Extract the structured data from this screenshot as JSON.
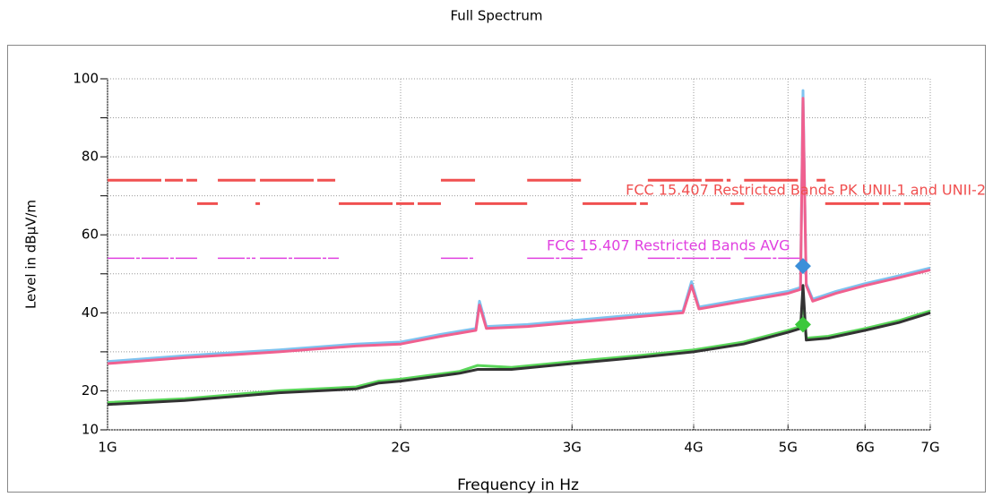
{
  "chart_data": {
    "type": "line",
    "title": "Full Spectrum",
    "xlabel": "Frequency in Hz",
    "ylabel": "Level in dBµV/m",
    "xscale": "log",
    "grid": true,
    "xlim": [
      1000000000,
      7000000000
    ],
    "ylim": [
      10,
      100
    ],
    "xticks": [
      {
        "value": 1000000000,
        "label": "1G"
      },
      {
        "value": 2000000000,
        "label": "2G"
      },
      {
        "value": 3000000000,
        "label": "3G"
      },
      {
        "value": 4000000000,
        "label": "4G"
      },
      {
        "value": 5000000000,
        "label": "5G"
      },
      {
        "value": 6000000000,
        "label": "6G"
      },
      {
        "value": 7000000000,
        "label": "7G"
      }
    ],
    "yticks": [
      10,
      20,
      40,
      60,
      80,
      100
    ],
    "yminor_ticks": [
      30,
      50,
      70,
      90
    ],
    "series": [
      {
        "color": "#7ec3f0",
        "x": [
          1000000000,
          1200000000,
          1500000000,
          1800000000,
          2000000000,
          2200000000,
          2390000000,
          2410000000,
          2450000000,
          2700000000,
          3000000000,
          3500000000,
          3900000000,
          3980000000,
          4050000000,
          4500000000,
          5000000000,
          5150000000,
          5180000000,
          5220000000,
          5300000000,
          5600000000,
          6000000000,
          6500000000,
          7000000000
        ],
        "values": [
          27.5,
          29,
          30.5,
          32,
          32.5,
          34.5,
          36,
          43,
          36.5,
          37,
          38,
          39.5,
          40.5,
          48,
          41.5,
          43.5,
          45.5,
          46.5,
          97,
          47.5,
          43.5,
          45.5,
          47.5,
          49.5,
          51.5
        ]
      },
      {
        "color": "#f0608f",
        "x": [
          1000000000,
          1200000000,
          1500000000,
          1800000000,
          2000000000,
          2200000000,
          2390000000,
          2410000000,
          2450000000,
          2700000000,
          3000000000,
          3500000000,
          3900000000,
          3980000000,
          4050000000,
          4500000000,
          5000000000,
          5150000000,
          5180000000,
          5220000000,
          5300000000,
          5600000000,
          6000000000,
          6500000000,
          7000000000
        ],
        "values": [
          27,
          28.5,
          30,
          31.5,
          32,
          34,
          35.5,
          42,
          36,
          36.5,
          37.5,
          39,
          40,
          47,
          41,
          43,
          45,
          46,
          95,
          47,
          43,
          45,
          47,
          49,
          51
        ]
      },
      {
        "color": "#5ad65a",
        "x": [
          1000000000,
          1200000000,
          1500000000,
          1800000000,
          1900000000,
          2000000000,
          2300000000,
          2400000000,
          2600000000,
          3000000000,
          3500000000,
          4000000000,
          4500000000,
          5000000000,
          5150000000,
          5180000000,
          5220000000,
          5500000000,
          6000000000,
          6500000000,
          7000000000
        ],
        "values": [
          17,
          18,
          20,
          21,
          22.5,
          23,
          25,
          26.5,
          26,
          27.5,
          29,
          30.5,
          32.5,
          35.5,
          36.5,
          44,
          33.5,
          34,
          36,
          38,
          40.5
        ]
      },
      {
        "color": "#333333",
        "x": [
          1000000000,
          1200000000,
          1500000000,
          1800000000,
          1900000000,
          2000000000,
          2300000000,
          2400000000,
          2600000000,
          3000000000,
          3500000000,
          4000000000,
          4500000000,
          5000000000,
          5150000000,
          5180000000,
          5220000000,
          5500000000,
          6000000000,
          6500000000,
          7000000000
        ],
        "values": [
          16.5,
          17.5,
          19.5,
          20.5,
          22,
          22.5,
          24.5,
          25.5,
          25.5,
          27,
          28.5,
          30,
          32,
          35,
          36,
          47,
          33,
          33.5,
          35.5,
          37.5,
          40
        ]
      }
    ],
    "limits": [
      {
        "label": "FCC 15.407 Restricted Bands PK UNII-1 and UNII-2",
        "color": "#f05050",
        "segments": [
          {
            "from": 1000000000,
            "to": 1236000000,
            "value": 74
          },
          {
            "from": 1236000000,
            "to": 1298000000,
            "value": 68
          },
          {
            "from": 1298000000,
            "to": 1419000000,
            "value": 74
          },
          {
            "from": 1419000000,
            "to": 1434000000,
            "value": 68
          },
          {
            "from": 1434000000,
            "to": 1728000000,
            "value": 74
          },
          {
            "from": 1728000000,
            "to": 2200000000,
            "value": 68
          },
          {
            "from": 2200000000,
            "to": 2385000000,
            "value": 74
          },
          {
            "from": 2385000000,
            "to": 2698000000,
            "value": 68
          },
          {
            "from": 2698000000,
            "to": 3076000000,
            "value": 74
          },
          {
            "from": 3076000000,
            "to": 3589000000,
            "value": 68
          },
          {
            "from": 3589000000,
            "to": 4365000000,
            "value": 74
          },
          {
            "from": 4365000000,
            "to": 4507000000,
            "value": 68
          },
          {
            "from": 4507000000,
            "to": 5150000000,
            "value": 74
          },
          {
            "from": 5350000000,
            "to": 5460000000,
            "value": 74
          },
          {
            "from": 5460000000,
            "to": 7000000000,
            "value": 68
          }
        ]
      },
      {
        "label": "FCC 15.407 Restricted Bands AVG",
        "color": "#e040e0",
        "segments": [
          {
            "from": 1000000000,
            "to": 1236000000,
            "value": 54
          },
          {
            "from": 1298000000,
            "to": 1419000000,
            "value": 54
          },
          {
            "from": 1434000000,
            "to": 1728000000,
            "value": 54
          },
          {
            "from": 2200000000,
            "to": 2385000000,
            "value": 54
          },
          {
            "from": 2698000000,
            "to": 3076000000,
            "value": 54
          },
          {
            "from": 3589000000,
            "to": 4365000000,
            "value": 54
          },
          {
            "from": 4507000000,
            "to": 5150000000,
            "value": 54
          }
        ]
      }
    ],
    "markers": [
      {
        "x": 5180000000,
        "y": 52,
        "color": "#3b8fd9"
      },
      {
        "x": 5180000000,
        "y": 37,
        "color": "#3cc83c"
      }
    ]
  }
}
